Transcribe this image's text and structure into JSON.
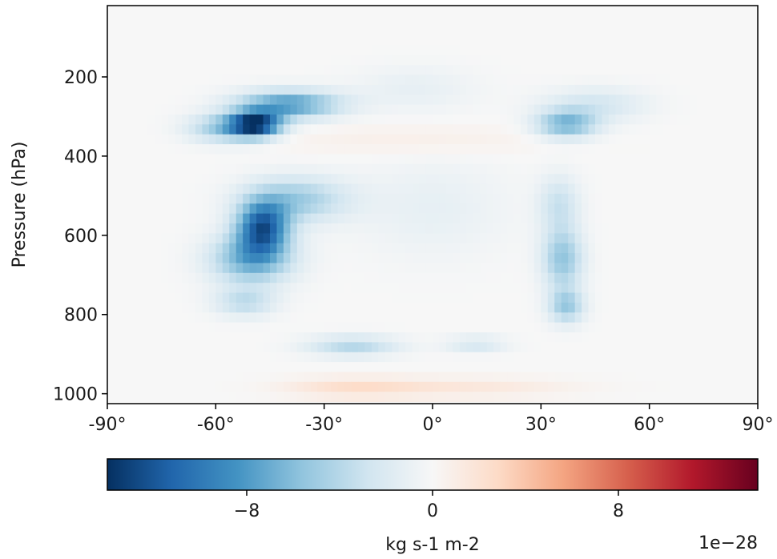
{
  "chart_data": {
    "type": "heatmap",
    "ylabel": "Pressure (hPa)",
    "xlabel": "",
    "xlim": [
      -90,
      90
    ],
    "ylim": [
      1025,
      20
    ],
    "y_inverted": true,
    "x_ticks": [
      {
        "value": -90,
        "label": "-90°"
      },
      {
        "value": -60,
        "label": "-60°"
      },
      {
        "value": -30,
        "label": "-30°"
      },
      {
        "value": 0,
        "label": "0°"
      },
      {
        "value": 30,
        "label": "30°"
      },
      {
        "value": 60,
        "label": "60°"
      },
      {
        "value": 90,
        "label": "90°"
      }
    ],
    "y_ticks": [
      {
        "value": 200,
        "label": "200"
      },
      {
        "value": 400,
        "label": "400"
      },
      {
        "value": 600,
        "label": "600"
      },
      {
        "value": 800,
        "label": "800"
      },
      {
        "value": 1000,
        "label": "1000"
      }
    ],
    "colormap": "RdBu_r",
    "colormap_stops": [
      "#053061",
      "#2166ac",
      "#4393c3",
      "#92c5de",
      "#d1e5f0",
      "#f7f7f7",
      "#fddbc7",
      "#f4a582",
      "#d6604d",
      "#b2182b",
      "#67001f"
    ],
    "colorbar": {
      "label": "kg s-1 m-2",
      "exponent_label": "1e−28",
      "range": [
        -14,
        14
      ],
      "ticks": [
        {
          "value": -8,
          "label": "−8"
        },
        {
          "value": 0,
          "label": "0"
        },
        {
          "value": 8,
          "label": "8"
        }
      ]
    },
    "features": [
      {
        "lat": -49,
        "p": 320,
        "value": -13.5,
        "sigma_lat": 5,
        "sigma_p": 22
      },
      {
        "lat": -40,
        "p": 270,
        "value": -8,
        "sigma_lat": 10,
        "sigma_p": 25
      },
      {
        "lat": -58,
        "p": 330,
        "value": -5,
        "sigma_lat": 7,
        "sigma_p": 25
      },
      {
        "lat": -47,
        "p": 580,
        "value": -11,
        "sigma_lat": 5,
        "sigma_p": 45
      },
      {
        "lat": -50,
        "p": 660,
        "value": -7,
        "sigma_lat": 8,
        "sigma_p": 45
      },
      {
        "lat": -38,
        "p": 510,
        "value": -5,
        "sigma_lat": 10,
        "sigma_p": 40
      },
      {
        "lat": -52,
        "p": 770,
        "value": -3.5,
        "sigma_lat": 6,
        "sigma_p": 25
      },
      {
        "lat": -22,
        "p": 880,
        "value": -4,
        "sigma_lat": 9,
        "sigma_p": 18
      },
      {
        "lat": 12,
        "p": 875,
        "value": -2.5,
        "sigma_lat": 6,
        "sigma_p": 14
      },
      {
        "lat": 37,
        "p": 320,
        "value": -6.5,
        "sigma_lat": 6,
        "sigma_p": 25
      },
      {
        "lat": 45,
        "p": 270,
        "value": -2.5,
        "sigma_lat": 10,
        "sigma_p": 30
      },
      {
        "lat": 36,
        "p": 660,
        "value": -5.5,
        "sigma_lat": 4,
        "sigma_p": 55
      },
      {
        "lat": 37,
        "p": 780,
        "value": -5,
        "sigma_lat": 3.5,
        "sigma_p": 30
      },
      {
        "lat": 35,
        "p": 520,
        "value": -3,
        "sigma_lat": 4,
        "sigma_p": 50
      },
      {
        "lat": -5,
        "p": 230,
        "value": -1.2,
        "sigma_lat": 12,
        "sigma_p": 40
      },
      {
        "lat": 0,
        "p": 530,
        "value": -1.2,
        "sigma_lat": 15,
        "sigma_p": 90
      },
      {
        "lat": -5,
        "p": 360,
        "value": 0.9,
        "sigma_lat": 26,
        "sigma_p": 28
      },
      {
        "lat": -22,
        "p": 985,
        "value": 2.2,
        "sigma_lat": 13,
        "sigma_p": 18
      },
      {
        "lat": 10,
        "p": 985,
        "value": 1.5,
        "sigma_lat": 20,
        "sigma_p": 18
      }
    ]
  }
}
